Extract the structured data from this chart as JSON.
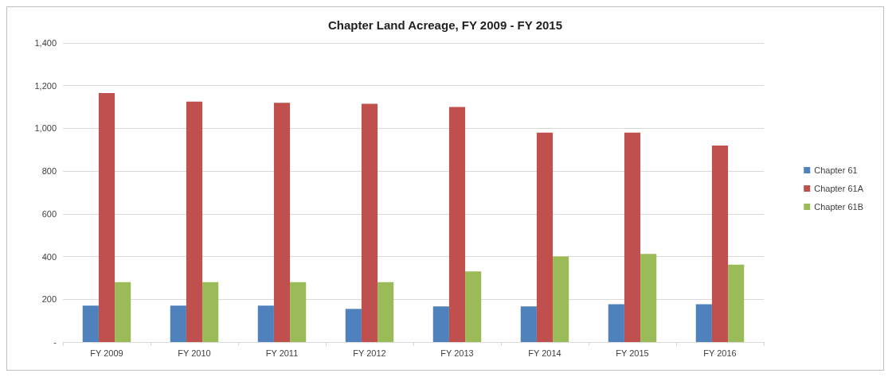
{
  "chart_data": {
    "type": "bar",
    "title": "Chapter Land Acreage, FY 2009 - FY 2015",
    "categories": [
      "FY 2009",
      "FY 2010",
      "FY 2011",
      "FY 2012",
      "FY 2013",
      "FY 2014",
      "FY 2015",
      "FY 2016"
    ],
    "series": [
      {
        "name": "Chapter 61",
        "color": "#4f81bd",
        "values": [
          170,
          170,
          170,
          155,
          167,
          167,
          177,
          177
        ]
      },
      {
        "name": "Chapter 61A",
        "color": "#c0504d",
        "values": [
          1165,
          1125,
          1120,
          1115,
          1100,
          980,
          980,
          920
        ]
      },
      {
        "name": "Chapter 61B",
        "color": "#9bbb59",
        "values": [
          280,
          280,
          280,
          280,
          330,
          400,
          412,
          362
        ]
      }
    ],
    "ylim": [
      0,
      1400
    ],
    "yticks": [
      {
        "value": 0,
        "label": "-"
      },
      {
        "value": 200,
        "label": "200"
      },
      {
        "value": 400,
        "label": "400"
      },
      {
        "value": 600,
        "label": "600"
      },
      {
        "value": 800,
        "label": "800"
      },
      {
        "value": 1000,
        "label": "1,000"
      },
      {
        "value": 1200,
        "label": "1,200"
      },
      {
        "value": 1400,
        "label": "1,400"
      }
    ],
    "grid": "y",
    "legend": "right"
  }
}
